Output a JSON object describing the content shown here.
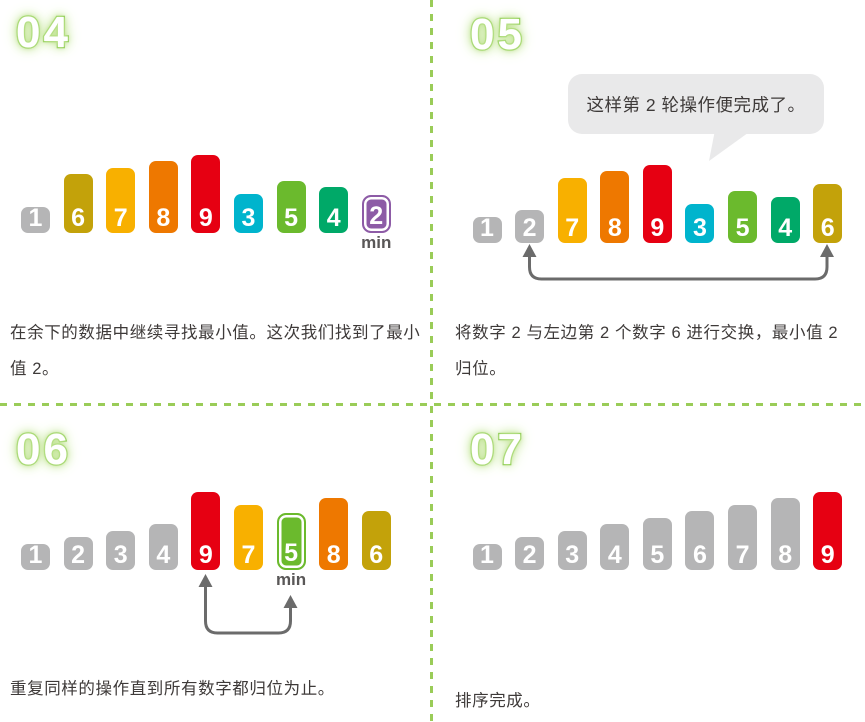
{
  "colors": {
    "gray": "#b5b5b6",
    "olive": "#c3a20a",
    "yellow": "#f8b000",
    "orange": "#ee7800",
    "red": "#e60012",
    "cyan": "#00b4cd",
    "green": "#6bba2d",
    "teal": "#00a968",
    "purple": "#8d5ba6",
    "divider_green": "#9acc58",
    "arrow_gray": "#6b6b6b",
    "bubble_bg": "#e9e9ea",
    "text_dark": "#3e3a39",
    "min_label_gray": "#595757",
    "step_number_green": "#6fbe2e"
  },
  "panels": [
    {
      "label": "04",
      "bars": [
        {
          "value": "1",
          "color": "gray",
          "min": false
        },
        {
          "value": "6",
          "color": "olive",
          "min": false
        },
        {
          "value": "7",
          "color": "yellow",
          "min": false
        },
        {
          "value": "8",
          "color": "orange",
          "min": false
        },
        {
          "value": "9",
          "color": "red",
          "min": false
        },
        {
          "value": "3",
          "color": "cyan",
          "min": false
        },
        {
          "value": "5",
          "color": "green",
          "min": false
        },
        {
          "value": "4",
          "color": "teal",
          "min": false
        },
        {
          "value": "2",
          "color": "purple",
          "min": true
        }
      ],
      "min_label": "min",
      "caption": "在余下的数据中继续寻找最小值。这次我们找到了最小值 2。"
    },
    {
      "label": "05",
      "bubble": "这样第 2 轮操作便完成了。",
      "bars": [
        {
          "value": "1",
          "color": "gray",
          "min": false
        },
        {
          "value": "2",
          "color": "gray",
          "min": false
        },
        {
          "value": "7",
          "color": "yellow",
          "min": false
        },
        {
          "value": "8",
          "color": "orange",
          "min": false
        },
        {
          "value": "9",
          "color": "red",
          "min": false
        },
        {
          "value": "3",
          "color": "cyan",
          "min": false
        },
        {
          "value": "5",
          "color": "green",
          "min": false
        },
        {
          "value": "4",
          "color": "teal",
          "min": false
        },
        {
          "value": "6",
          "color": "olive",
          "min": false
        }
      ],
      "caption": "将数字 2 与左边第 2 个数字 6 进行交换，最小值 2 归位。"
    },
    {
      "label": "06",
      "bars": [
        {
          "value": "1",
          "color": "gray",
          "min": false
        },
        {
          "value": "2",
          "color": "gray",
          "min": false
        },
        {
          "value": "3",
          "color": "gray",
          "min": false
        },
        {
          "value": "4",
          "color": "gray",
          "min": false
        },
        {
          "value": "9",
          "color": "red",
          "min": false
        },
        {
          "value": "7",
          "color": "yellow",
          "min": false
        },
        {
          "value": "5",
          "color": "green",
          "min": true
        },
        {
          "value": "8",
          "color": "orange",
          "min": false
        },
        {
          "value": "6",
          "color": "olive",
          "min": false
        }
      ],
      "min_label": "min",
      "caption": "重复同样的操作直到所有数字都归位为止。"
    },
    {
      "label": "07",
      "bars": [
        {
          "value": "1",
          "color": "gray",
          "min": false
        },
        {
          "value": "2",
          "color": "gray",
          "min": false
        },
        {
          "value": "3",
          "color": "gray",
          "min": false
        },
        {
          "value": "4",
          "color": "gray",
          "min": false
        },
        {
          "value": "5",
          "color": "gray",
          "min": false
        },
        {
          "value": "6",
          "color": "gray",
          "min": false
        },
        {
          "value": "7",
          "color": "gray",
          "min": false
        },
        {
          "value": "8",
          "color": "gray",
          "min": false
        },
        {
          "value": "9",
          "color": "red",
          "min": false
        }
      ],
      "caption": "排序完成。"
    }
  ]
}
